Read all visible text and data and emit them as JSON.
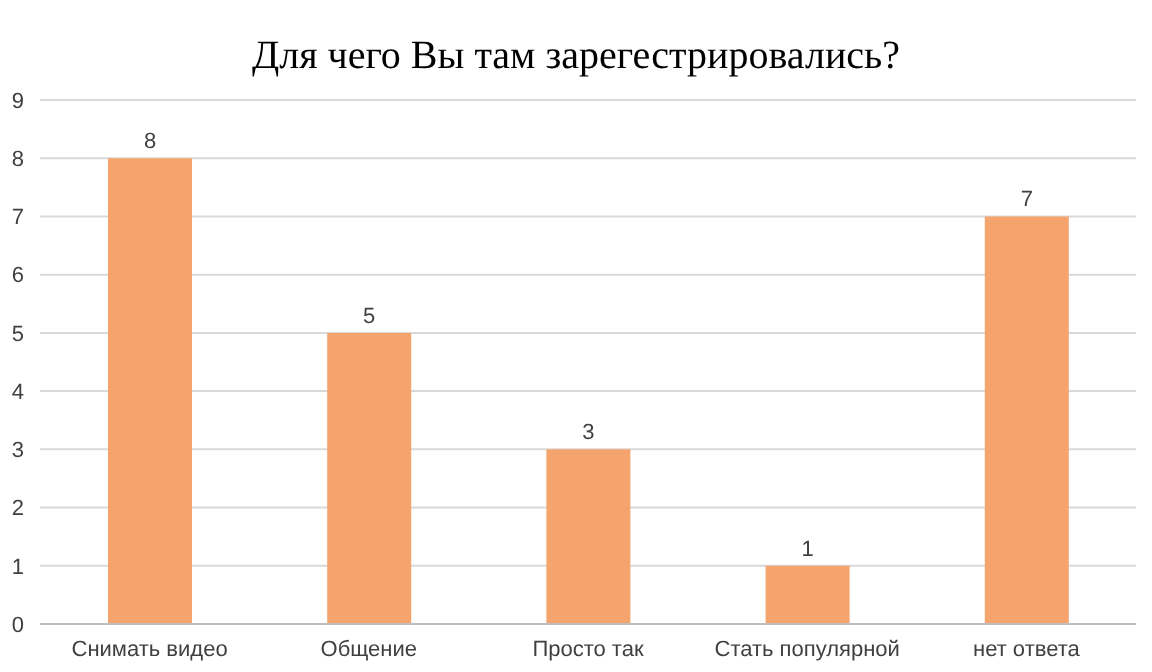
{
  "chart_data": {
    "type": "bar",
    "title": "Для чего Вы там зарегестрировались?",
    "categories": [
      "Снимать видео",
      "Общение",
      "Просто так",
      "Стать популярной",
      "нет ответа"
    ],
    "values": [
      8,
      5,
      3,
      1,
      7
    ],
    "color": "#f4a46c",
    "ylim": [
      0,
      9
    ],
    "yticks": [
      0,
      1,
      2,
      3,
      4,
      5,
      6,
      7,
      8,
      9
    ],
    "grid": "y",
    "data_labels": true
  }
}
